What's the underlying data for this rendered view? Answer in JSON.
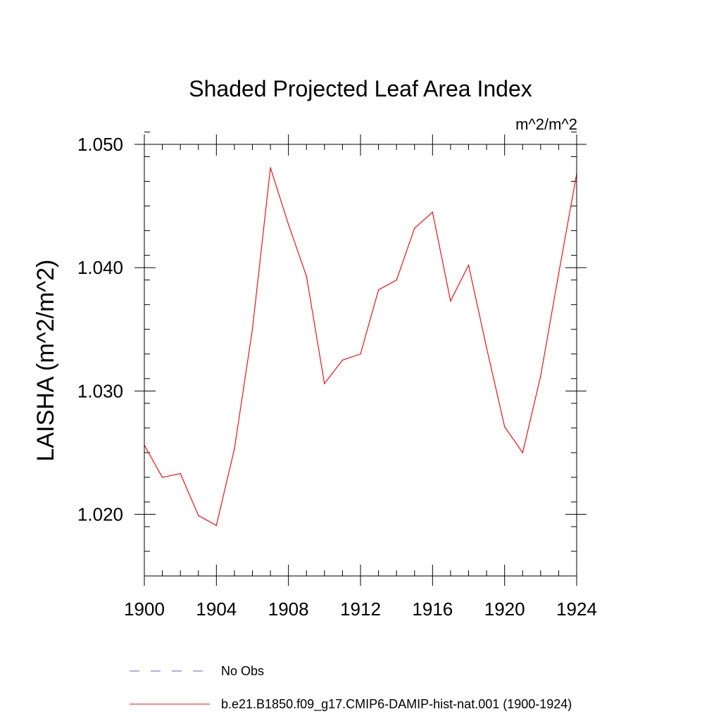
{
  "chart_data": {
    "type": "line",
    "title": "Shaded Projected Leaf Area Index",
    "units_label": "m^2/m^2",
    "ylabel": "LAISHA  (m^2/m^2)",
    "xlabel": "",
    "xlim": [
      1900,
      1924
    ],
    "ylim": [
      1.015,
      1.05
    ],
    "x_ticks": [
      1900,
      1904,
      1908,
      1912,
      1916,
      1920,
      1924
    ],
    "x_tick_labels": [
      "1900",
      "1904",
      "1908",
      "1912",
      "1916",
      "1920",
      "1924"
    ],
    "y_ticks": [
      1.02,
      1.03,
      1.04,
      1.05
    ],
    "y_tick_labels": [
      "1.020",
      "1.030",
      "1.040",
      "1.050"
    ],
    "x_minor_step": 1,
    "y_minor_step": 0.002,
    "grid": false,
    "legend_position": "bottom",
    "series": [
      {
        "name": "No Obs",
        "color": "#6a5acd",
        "style": "dashed",
        "x": [],
        "values": []
      },
      {
        "name": "b.e21.B1850.f09_g17.CMIP6-DAMIP-hist-nat.001 (1900-1924)",
        "color": "#e8141b",
        "style": "solid",
        "x": [
          1900,
          1901,
          1902,
          1903,
          1904,
          1905,
          1906,
          1907,
          1908,
          1909,
          1910,
          1911,
          1912,
          1913,
          1914,
          1915,
          1916,
          1917,
          1918,
          1919,
          1920,
          1921,
          1922,
          1923,
          1924
        ],
        "values": [
          1.0256,
          1.023,
          1.0233,
          1.0199,
          1.0191,
          1.0253,
          1.035,
          1.0481,
          1.0435,
          1.0393,
          1.0306,
          1.0325,
          1.033,
          1.0382,
          1.039,
          1.0432,
          1.0445,
          1.0373,
          1.0402,
          1.0335,
          1.0271,
          1.025,
          1.0312,
          1.0395,
          1.0476
        ]
      }
    ]
  }
}
